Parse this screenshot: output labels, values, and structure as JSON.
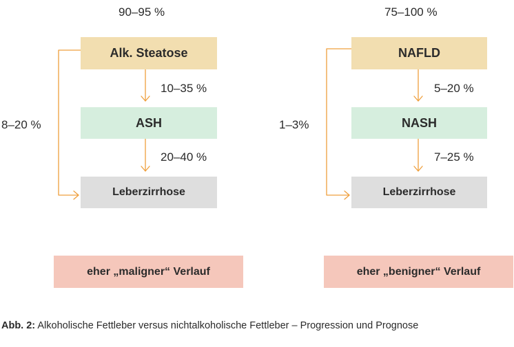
{
  "colors": {
    "steatosis": "#f2deb0",
    "inflammation": "#d6eede",
    "cirrhosis": "#dedede",
    "outcome": "#f5c7bb",
    "arrow": "#ef9f3c"
  },
  "left": {
    "top_percent": "90–95 %",
    "box1": "Alk. Steatose",
    "step1_percent": "10–35 %",
    "box2": "ASH",
    "step2_percent": "20–40 %",
    "box3": "Leberzirrhose",
    "bypass_percent": "8–20 %",
    "outcome": "eher „maligner“ Verlauf"
  },
  "right": {
    "top_percent": "75–100 %",
    "box1": "NAFLD",
    "step1_percent": "5–20 %",
    "box2": "NASH",
    "step2_percent": "7–25 %",
    "box3": "Leberzirrhose",
    "bypass_percent": "1–3%",
    "outcome": "eher „benigner“ Verlauf"
  },
  "caption": {
    "label": "Abb. 2:",
    "text": " Alkoholische Fettleber versus nichtalkoholische Fettleber – Progression und Prognose"
  }
}
